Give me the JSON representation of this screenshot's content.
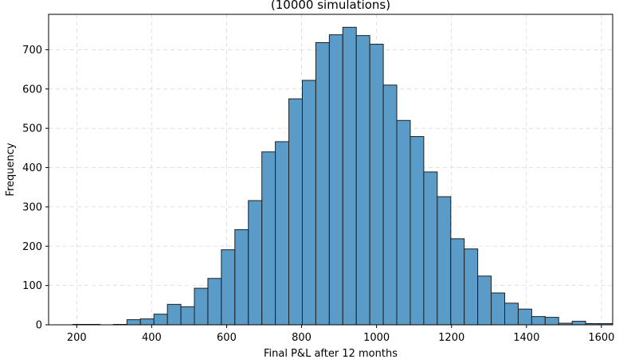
{
  "chart_data": {
    "type": "bar",
    "title": "(10000 simulations)",
    "xlabel": "Final P&L after 12 months",
    "ylabel": "Frequency",
    "xlim": [
      125,
      1630
    ],
    "ylim": [
      0,
      790
    ],
    "xticks": [
      200,
      400,
      600,
      800,
      1000,
      1200,
      1400,
      1600
    ],
    "yticks": [
      0,
      100,
      200,
      300,
      400,
      500,
      600,
      700
    ],
    "grid": true,
    "bar_color": "#5b9bc8",
    "edge_color": "#1f1f1f",
    "bins": [
      {
        "x0": 190,
        "x1": 226,
        "value": 1
      },
      {
        "x0": 226,
        "x1": 262,
        "value": 1
      },
      {
        "x0": 298,
        "x1": 334,
        "value": 1
      },
      {
        "x0": 334,
        "x1": 370,
        "value": 13
      },
      {
        "x0": 370,
        "x1": 406,
        "value": 15
      },
      {
        "x0": 406,
        "x1": 442,
        "value": 27
      },
      {
        "x0": 442,
        "x1": 478,
        "value": 52
      },
      {
        "x0": 478,
        "x1": 514,
        "value": 46
      },
      {
        "x0": 514,
        "x1": 550,
        "value": 93
      },
      {
        "x0": 550,
        "x1": 586,
        "value": 118
      },
      {
        "x0": 586,
        "x1": 622,
        "value": 191
      },
      {
        "x0": 622,
        "x1": 658,
        "value": 242
      },
      {
        "x0": 658,
        "x1": 694,
        "value": 316
      },
      {
        "x0": 694,
        "x1": 730,
        "value": 440
      },
      {
        "x0": 730,
        "x1": 766,
        "value": 466
      },
      {
        "x0": 766,
        "x1": 802,
        "value": 575
      },
      {
        "x0": 802,
        "x1": 838,
        "value": 622
      },
      {
        "x0": 838,
        "x1": 874,
        "value": 718
      },
      {
        "x0": 874,
        "x1": 910,
        "value": 738
      },
      {
        "x0": 910,
        "x1": 946,
        "value": 757
      },
      {
        "x0": 946,
        "x1": 982,
        "value": 736
      },
      {
        "x0": 982,
        "x1": 1018,
        "value": 714
      },
      {
        "x0": 1018,
        "x1": 1054,
        "value": 610
      },
      {
        "x0": 1054,
        "x1": 1090,
        "value": 520
      },
      {
        "x0": 1090,
        "x1": 1126,
        "value": 479
      },
      {
        "x0": 1126,
        "x1": 1162,
        "value": 389
      },
      {
        "x0": 1162,
        "x1": 1198,
        "value": 326
      },
      {
        "x0": 1198,
        "x1": 1234,
        "value": 219
      },
      {
        "x0": 1234,
        "x1": 1270,
        "value": 193
      },
      {
        "x0": 1270,
        "x1": 1306,
        "value": 124
      },
      {
        "x0": 1306,
        "x1": 1342,
        "value": 81
      },
      {
        "x0": 1342,
        "x1": 1378,
        "value": 55
      },
      {
        "x0": 1378,
        "x1": 1414,
        "value": 40
      },
      {
        "x0": 1414,
        "x1": 1450,
        "value": 21
      },
      {
        "x0": 1450,
        "x1": 1486,
        "value": 19
      },
      {
        "x0": 1486,
        "x1": 1522,
        "value": 4
      },
      {
        "x0": 1522,
        "x1": 1558,
        "value": 9
      },
      {
        "x0": 1558,
        "x1": 1594,
        "value": 3
      },
      {
        "x0": 1594,
        "x1": 1630,
        "value": 3
      }
    ]
  }
}
